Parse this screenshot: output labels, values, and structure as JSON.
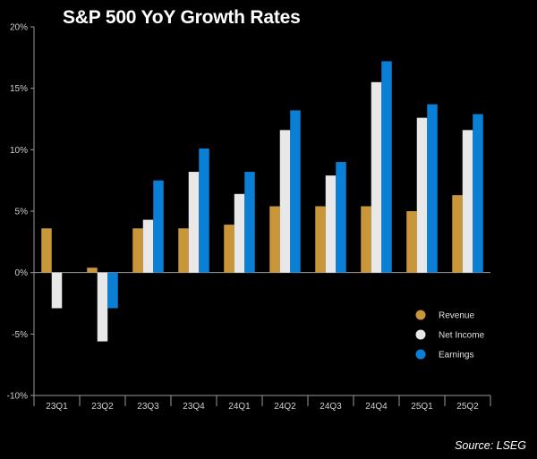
{
  "chart_data": {
    "type": "bar",
    "title": "S&P 500 YoY Growth Rates",
    "source": "Source: LSEG",
    "categories": [
      "23Q1",
      "23Q2",
      "23Q3",
      "23Q4",
      "24Q1",
      "24Q2",
      "24Q3",
      "24Q4",
      "25Q1",
      "25Q2"
    ],
    "series": [
      {
        "name": "Revenue",
        "color": "#c9963a",
        "values": [
          3.6,
          0.4,
          3.6,
          3.6,
          3.9,
          5.4,
          5.4,
          5.4,
          5.0,
          6.3
        ]
      },
      {
        "name": "Net Income",
        "color": "#e8e8e8",
        "values": [
          -2.9,
          -5.6,
          4.3,
          8.2,
          6.4,
          11.6,
          7.9,
          15.5,
          12.6,
          11.6
        ]
      },
      {
        "name": "Earnings",
        "color": "#0a7fd6",
        "values": [
          null,
          -2.9,
          7.5,
          10.1,
          8.2,
          13.2,
          9.0,
          17.2,
          13.7,
          12.9
        ]
      }
    ],
    "ylim": [
      -10,
      20
    ],
    "yticks": [
      -10,
      -5,
      0,
      5,
      10,
      15,
      20
    ],
    "ytick_labels": [
      "-10%",
      "-5%",
      "0%",
      "5%",
      "10%",
      "15%",
      "20%"
    ],
    "legend_position": "lower-right",
    "grid": false,
    "xlabel": "",
    "ylabel": ""
  }
}
